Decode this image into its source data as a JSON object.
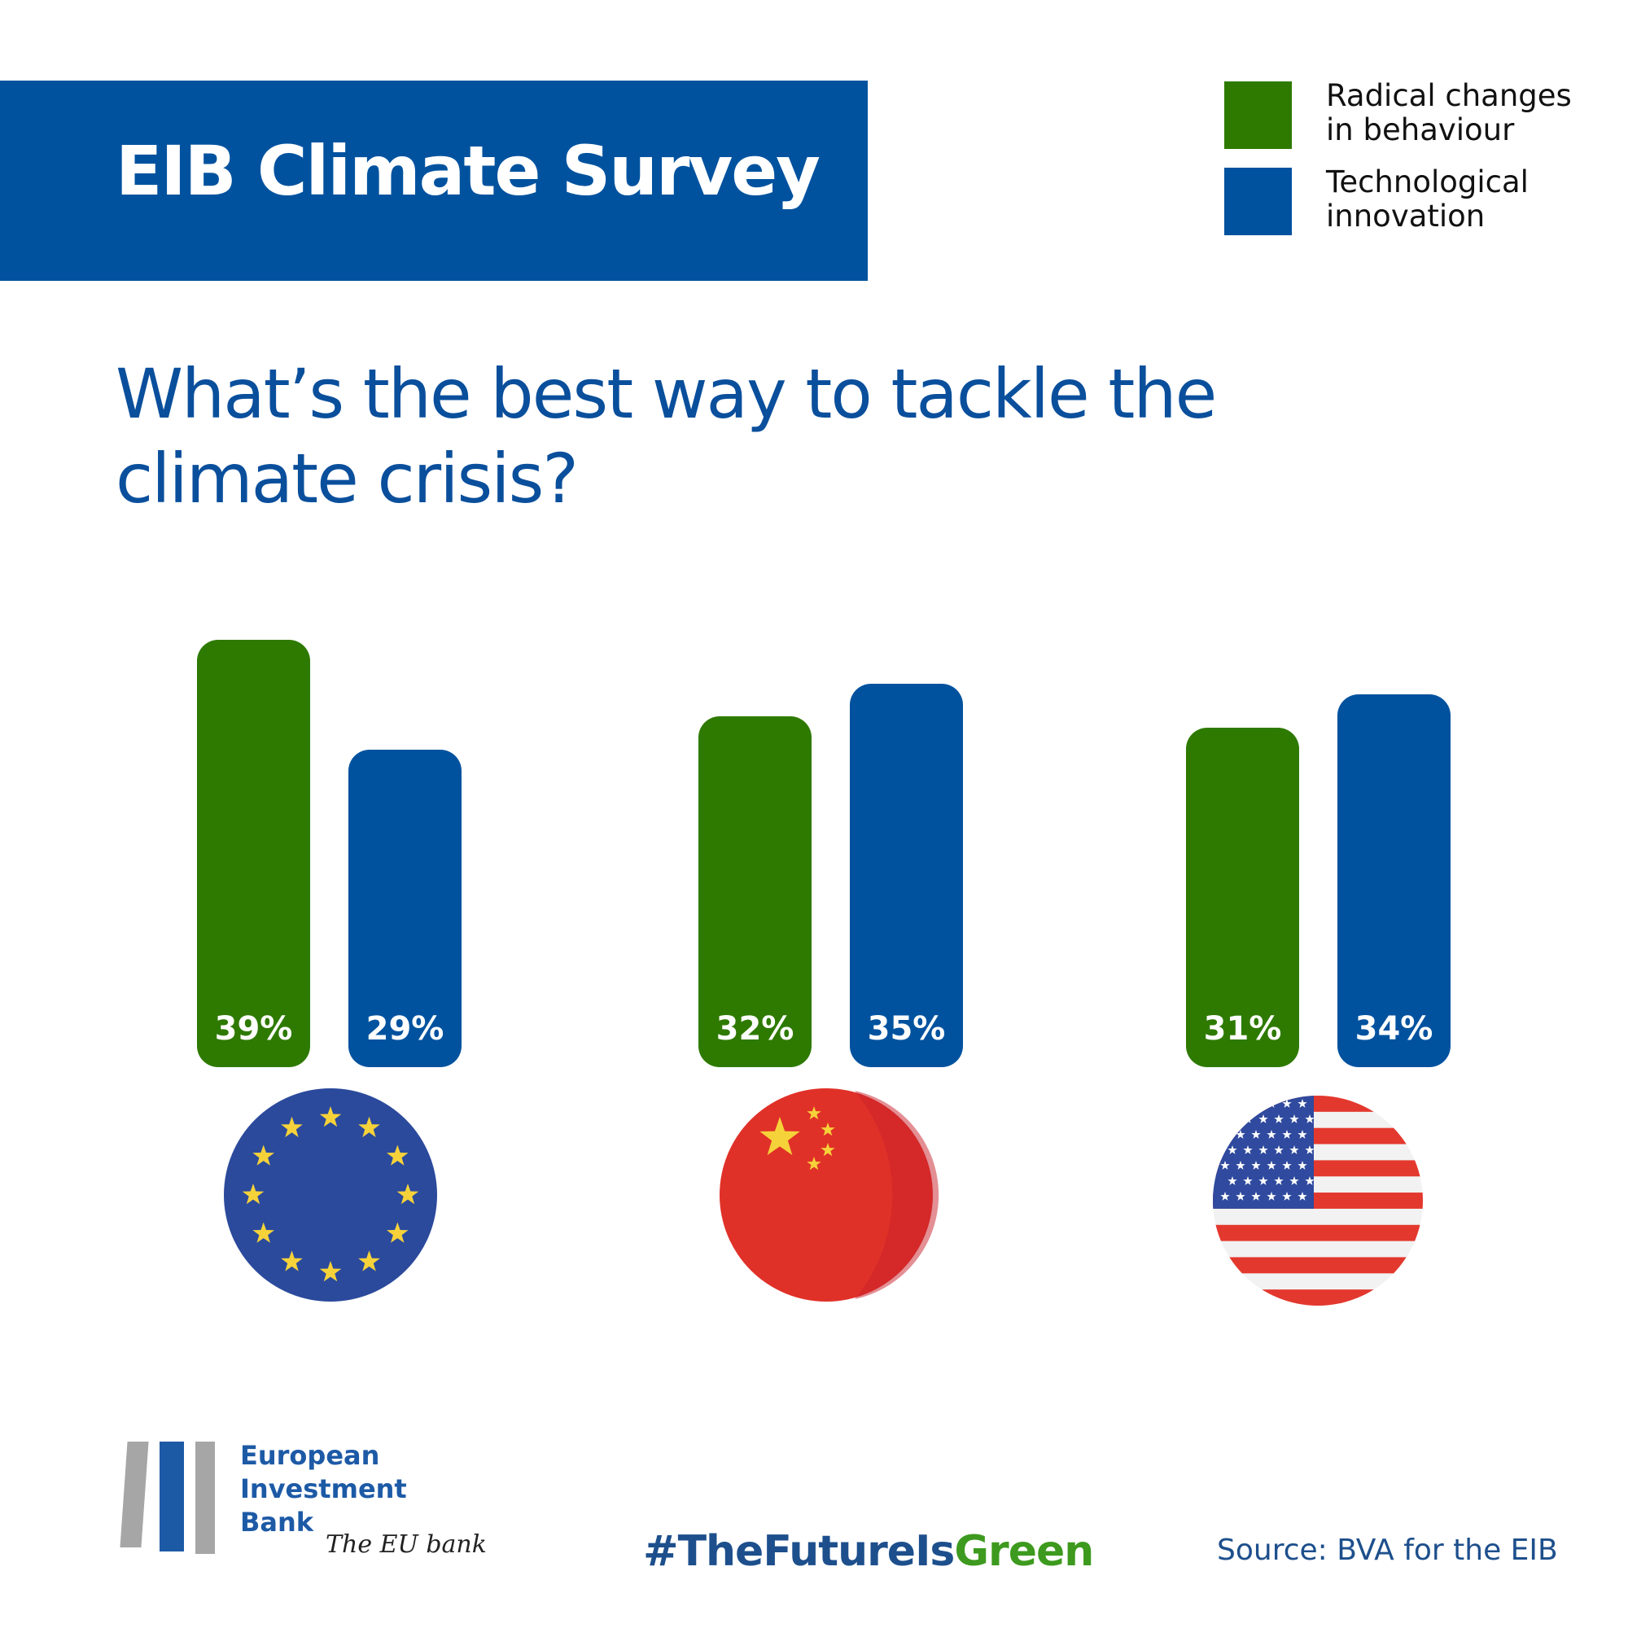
{
  "chart_data": {
    "type": "bar",
    "title": "EIB Climate Survey",
    "subtitle": "What’s the best way to tackle the climate crisis?",
    "categories": [
      null,
      null,
      null
    ],
    "series": [
      {
        "name": "Radical changes in behaviour",
        "color": "#2e7a00",
        "values": [
          39,
          32,
          31
        ],
        "value_labels": [
          "39%",
          "32%",
          "31%"
        ]
      },
      {
        "name": "Technological innovation",
        "color": "#00529f",
        "values": [
          29,
          35,
          34
        ],
        "value_labels": [
          "29%",
          "35%",
          "34%"
        ]
      }
    ]
  },
  "footer": {
    "logo": [
      "European",
      "Investment",
      "Bank"
    ],
    "tagline": "The EU bank",
    "hashtag": [
      "#TheFutureIs",
      "Green"
    ],
    "source": "Source: BVA for the EIB"
  }
}
